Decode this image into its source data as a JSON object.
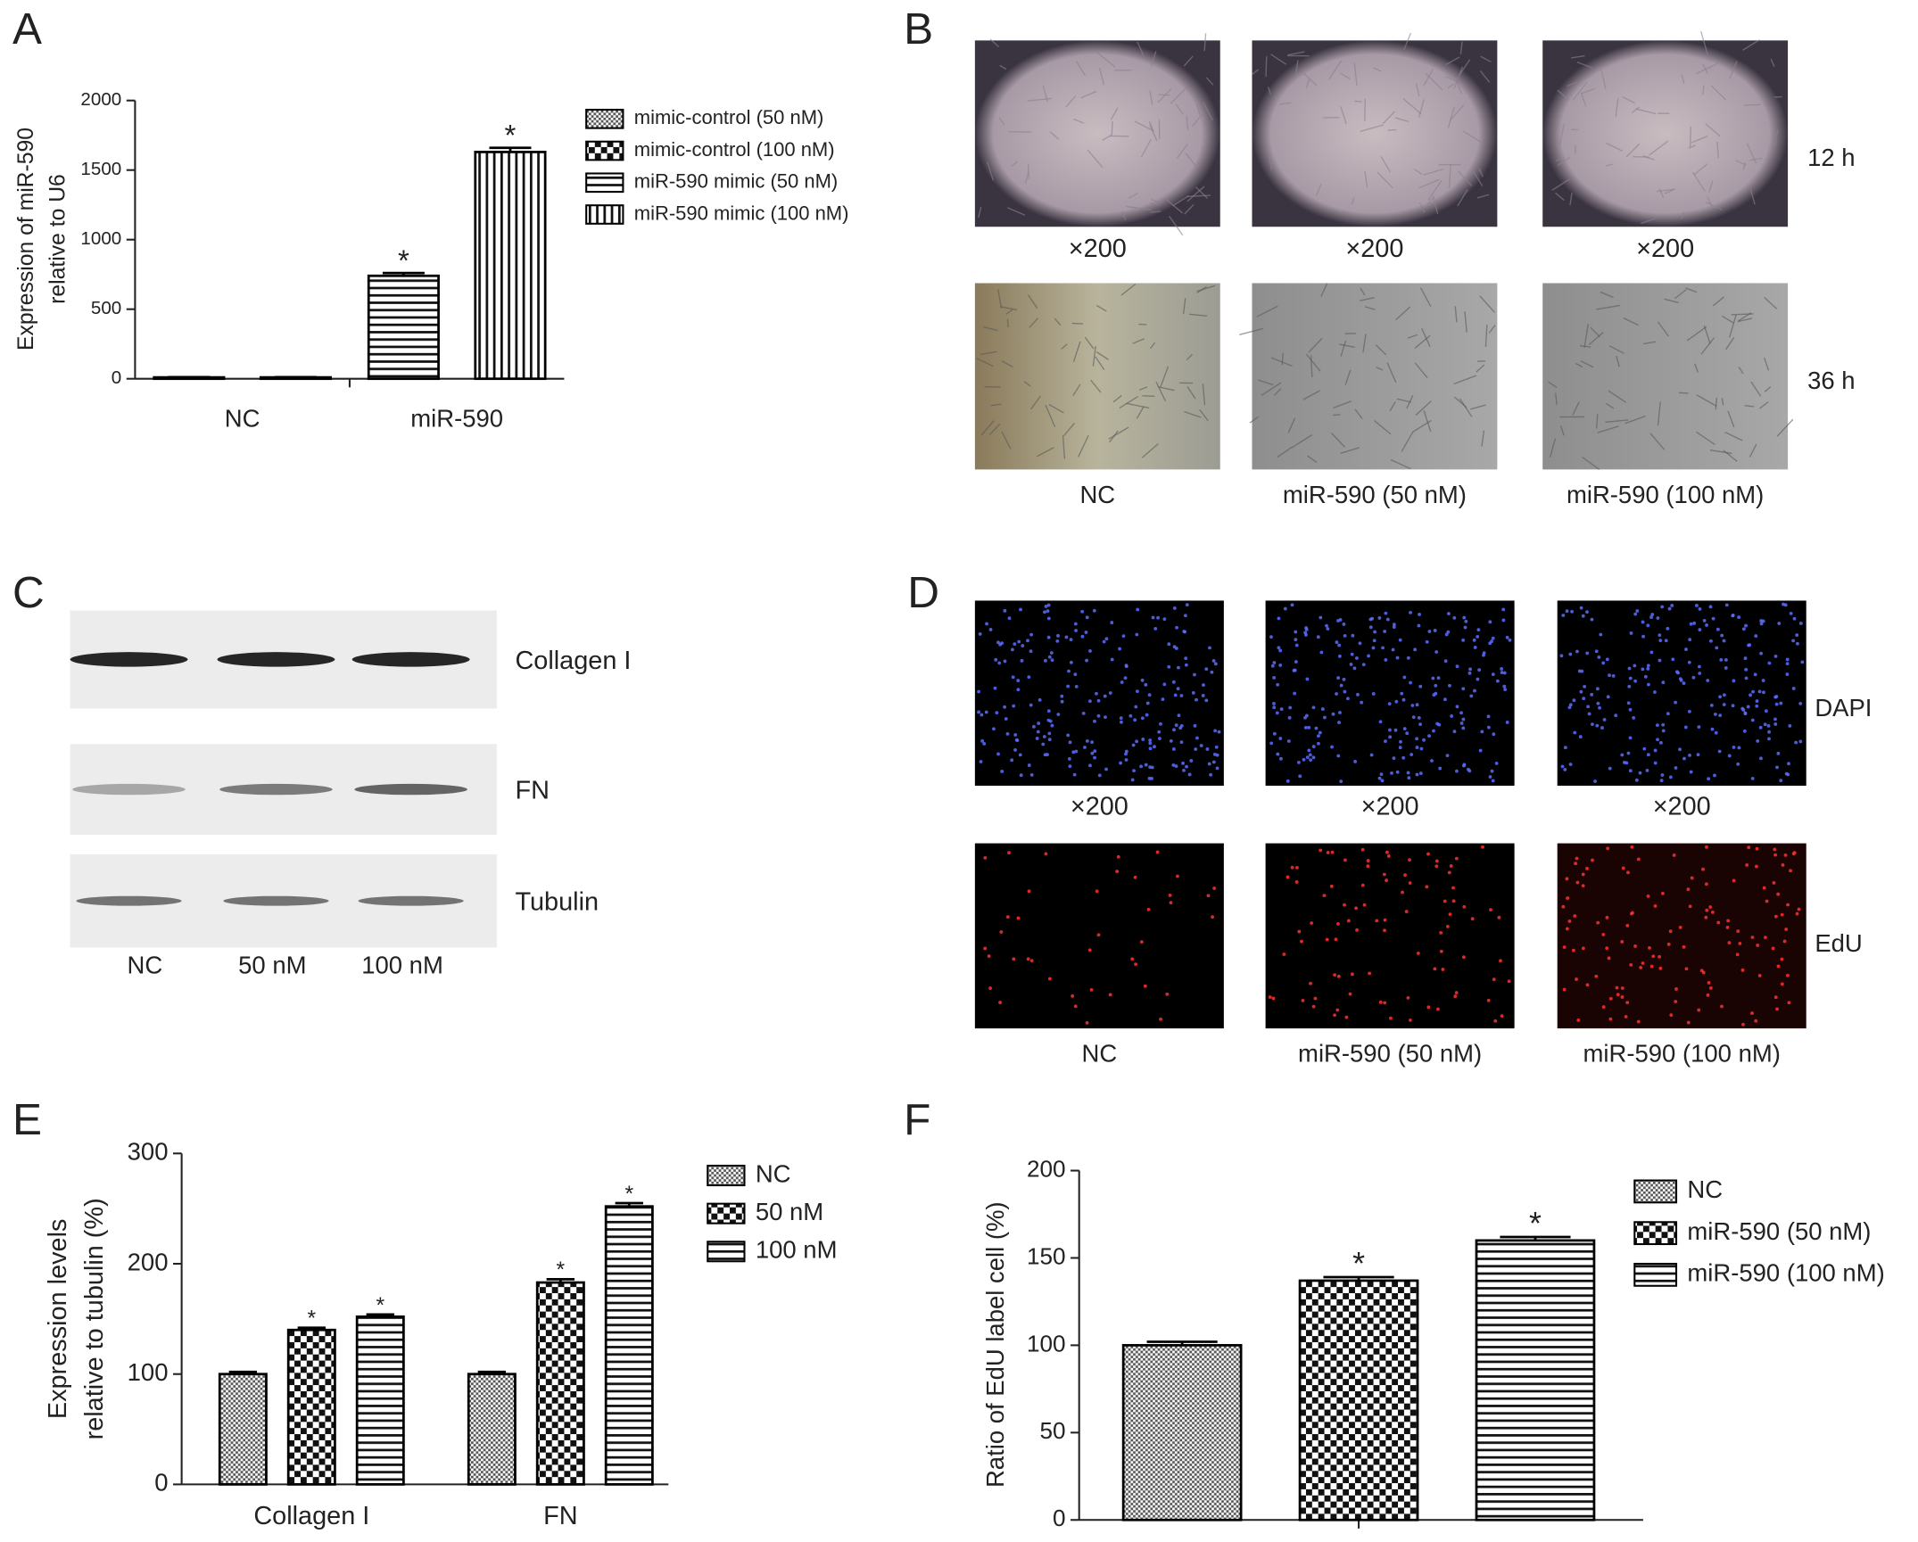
{
  "chart_data": [
    {
      "type": "bar",
      "panel": "A",
      "ylabel": [
        "Expression of miR-590",
        "relative to U6"
      ],
      "categories": [
        "NC",
        "miR-590"
      ],
      "ylim": [
        0,
        2000
      ],
      "yticks": [
        0,
        500,
        1000,
        1500,
        2000
      ],
      "series": [
        {
          "name": "mimic-control (50 nM)",
          "color": "#000000",
          "pattern": "dots",
          "values": [
            10,
            null
          ],
          "errors": [
            2,
            null
          ],
          "significance": [
            null,
            null
          ]
        },
        {
          "name": "mimic-control (100 nM)",
          "color": "#000000",
          "pattern": "checker",
          "values": [
            10,
            null
          ],
          "errors": [
            2,
            null
          ],
          "significance": [
            null,
            null
          ]
        },
        {
          "name": "miR-590 mimic (50 nM)",
          "color": "#000000",
          "pattern": "hlines",
          "values": [
            null,
            740
          ],
          "errors": [
            null,
            20
          ],
          "significance": [
            null,
            "*"
          ]
        },
        {
          "name": "miR-590 mimic (100 nM)",
          "color": "#000000",
          "pattern": "vlines",
          "values": [
            null,
            1630
          ],
          "errors": [
            null,
            30
          ],
          "significance": [
            null,
            "*"
          ]
        }
      ]
    },
    {
      "type": "bar",
      "panel": "E",
      "ylabel": [
        "Expression levels",
        "relative to tubulin (%)"
      ],
      "categories": [
        "Collagen I",
        "FN"
      ],
      "ylim": [
        0,
        300
      ],
      "yticks": [
        0,
        100,
        200,
        300
      ],
      "series": [
        {
          "name": "NC",
          "color": "#000000",
          "pattern": "dots",
          "values": [
            100,
            100
          ],
          "errors": [
            2,
            2
          ],
          "significance": [
            null,
            null
          ]
        },
        {
          "name": "50 nM",
          "color": "#000000",
          "pattern": "checker",
          "values": [
            140,
            183
          ],
          "errors": [
            2,
            3
          ],
          "significance": [
            "*",
            "*"
          ]
        },
        {
          "name": "100 nM",
          "color": "#000000",
          "pattern": "hlines",
          "values": [
            152,
            252
          ],
          "errors": [
            2,
            3
          ],
          "significance": [
            "*",
            "*"
          ]
        }
      ]
    },
    {
      "type": "bar",
      "panel": "F",
      "ylabel": [
        "Ratio of EdU label cell (%)"
      ],
      "categories": [
        null
      ],
      "ylim": [
        0,
        200
      ],
      "yticks": [
        0,
        50,
        100,
        150,
        200
      ],
      "series": [
        {
          "name": "NC",
          "color": "#000000",
          "pattern": "dots",
          "values": [
            100
          ],
          "errors": [
            2
          ],
          "significance": [
            null
          ]
        },
        {
          "name": "miR-590 (50 nM)",
          "color": "#000000",
          "pattern": "checker",
          "values": [
            137
          ],
          "errors": [
            2
          ],
          "significance": [
            "*"
          ]
        },
        {
          "name": "miR-590 (100 nM)",
          "color": "#000000",
          "pattern": "hlines",
          "values": [
            160
          ],
          "errors": [
            2
          ],
          "significance": [
            "*"
          ]
        }
      ]
    }
  ],
  "panel_b": {
    "panel": "B",
    "magnification": [
      "×200",
      "×200",
      "×200"
    ],
    "rows": [
      "12 h",
      "36 h"
    ],
    "conditions": [
      "NC",
      "miR-590 (50 nM)",
      "miR-590 (100 nM)"
    ]
  },
  "panel_c": {
    "panel": "C",
    "proteins": [
      "Collagen I",
      "FN",
      "Tubulin"
    ],
    "lanes": [
      "NC",
      "50 nM",
      "100 nM"
    ]
  },
  "panel_d": {
    "panel": "D",
    "magnification": [
      "×200",
      "×200",
      "×200"
    ],
    "stains": [
      "DAPI",
      "EdU"
    ],
    "conditions": [
      "NC",
      "miR-590 (50 nM)",
      "miR-590 (100 nM)"
    ]
  }
}
